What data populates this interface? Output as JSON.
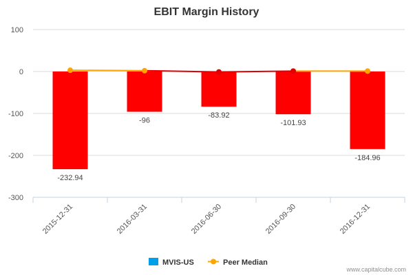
{
  "chart_data": {
    "type": "bar",
    "title": "EBIT Margin History",
    "categories": [
      "2015-12-31",
      "2016-03-31",
      "2016-06-30",
      "2016-09-30",
      "2016-12-31"
    ],
    "series": [
      {
        "name": "MVIS-US",
        "type": "bar",
        "values": [
          -232.94,
          -96,
          -83.92,
          -101.93,
          -184.96
        ],
        "data_labels": [
          "-232.94",
          "-96",
          "-83.92",
          "-101.93",
          "-184.96"
        ],
        "bar_color": "#ff0000",
        "legend_color": "#00a0e9"
      },
      {
        "name": "Peer Median",
        "type": "line",
        "values": [
          3,
          2,
          -1,
          1,
          1
        ],
        "color": "#ffa500"
      }
    ],
    "yticks": [
      "100",
      "0",
      "-100",
      "-200",
      "-300"
    ],
    "ylim": [
      -300,
      100
    ],
    "legend_position": "bottom"
  },
  "credit": "www.capitalcube.com",
  "colors": {
    "marker_red": "#e00000",
    "axis": "#c0d0e0",
    "grid": "#d8d8d8"
  }
}
